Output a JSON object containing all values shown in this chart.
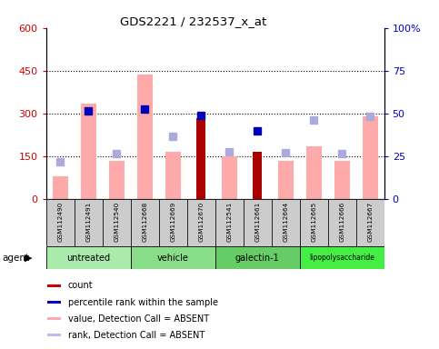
{
  "title": "GDS2221 / 232537_x_at",
  "samples": [
    "GSM112490",
    "GSM112491",
    "GSM112540",
    "GSM112668",
    "GSM112669",
    "GSM112670",
    "GSM112541",
    "GSM112661",
    "GSM112664",
    "GSM112665",
    "GSM112666",
    "GSM112667"
  ],
  "agents": [
    {
      "label": "untreated",
      "start": 0,
      "end": 3,
      "color": "#aaeaaa"
    },
    {
      "label": "vehicle",
      "start": 3,
      "end": 6,
      "color": "#aaeaaa"
    },
    {
      "label": "galectin-1",
      "start": 6,
      "end": 9,
      "color": "#aaeaaa"
    },
    {
      "label": "lipopolysaccharide",
      "start": 9,
      "end": 12,
      "color": "#55dd55"
    }
  ],
  "pink_bars": [
    80,
    335,
    135,
    435,
    165,
    null,
    150,
    null,
    135,
    185,
    135,
    290
  ],
  "dark_red_bars": [
    null,
    null,
    null,
    null,
    null,
    285,
    null,
    165,
    null,
    null,
    null,
    null
  ],
  "blue_squares": [
    null,
    310,
    null,
    315,
    null,
    292,
    null,
    240,
    null,
    null,
    null,
    null
  ],
  "lavender_squares": [
    130,
    null,
    158,
    null,
    220,
    null,
    165,
    null,
    162,
    278,
    158,
    290
  ],
  "ylim_left": [
    0,
    600
  ],
  "ylim_right": [
    0,
    100
  ],
  "yticks_left": [
    0,
    150,
    300,
    450,
    600
  ],
  "yticks_right": [
    0,
    25,
    50,
    75,
    100
  ],
  "yticklabels_left": [
    "0",
    "150",
    "300",
    "450",
    "600"
  ],
  "yticklabels_right": [
    "0",
    "25",
    "50",
    "75",
    "100%"
  ],
  "left_tick_color": "#cc0000",
  "right_tick_color": "#0000cc",
  "grid_lines": [
    150,
    300,
    450
  ],
  "legend_items": [
    {
      "color": "#cc0000",
      "label": "count"
    },
    {
      "color": "#0000cc",
      "label": "percentile rank within the sample"
    },
    {
      "color": "#ffaaaa",
      "label": "value, Detection Call = ABSENT"
    },
    {
      "color": "#bbbbee",
      "label": "rank, Detection Call = ABSENT"
    }
  ]
}
